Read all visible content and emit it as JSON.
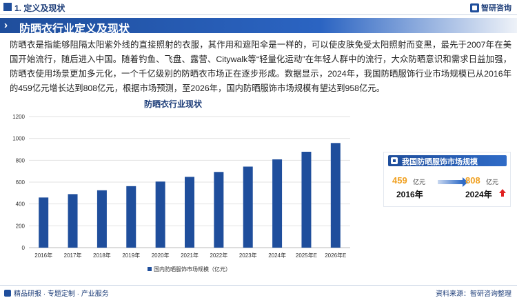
{
  "header": {
    "section": "1. 定义及现状",
    "brand": "智研咨询"
  },
  "banner": {
    "title": "防晒衣行业定义及现状"
  },
  "paragraph": "防晒衣是指能够阻隔太阳紫外线的直接照射的衣服，其作用和遮阳伞是一样的，可以使皮肤免受太阳照射而变黑，最先于2007年在美国开始流行，随后进入中国。随着钓鱼、飞盘、露营、Citywalk等“轻量化运动”在年轻人群中的流行，大众防晒意识和需求日益加强，防晒衣使用场景更加多元化，一个千亿级别的防晒衣市场正在逐步形成。数据显示，2024年，我国防晒服饰行业市场规模已从2016年的459亿元增长达到808亿元，根据市场预测，至2026年，国内防晒服饰市场规模有望达到958亿元。",
  "chart_data": {
    "type": "bar",
    "title": "防晒衣行业现状",
    "categories": [
      "2016年",
      "2017年",
      "2018年",
      "2019年",
      "2020年",
      "2021年",
      "2022年",
      "2023年",
      "2024年",
      "2025年E",
      "2026年E"
    ],
    "series": [
      {
        "name": "国内防晒服饰市场规模（亿元）",
        "values": [
          459,
          490,
          525,
          563,
          605,
          648,
          693,
          742,
          808,
          878,
          958
        ]
      }
    ],
    "yticks": [
      0,
      200,
      400,
      600,
      800,
      1000,
      1200
    ],
    "ylim": [
      0,
      1200
    ],
    "grid": true,
    "legend": "bottom",
    "color": "#1f4e9c"
  },
  "panel": {
    "title": "我国防晒服饰市场规模",
    "left_value": "459",
    "left_unit": "亿元",
    "left_year": "2016年",
    "right_value": "808",
    "right_unit": "亿元",
    "right_year": "2024年"
  },
  "footer": {
    "left": "精品研报 · 专题定制 · 产业服务",
    "right": "资料来源：智研咨询整理"
  }
}
